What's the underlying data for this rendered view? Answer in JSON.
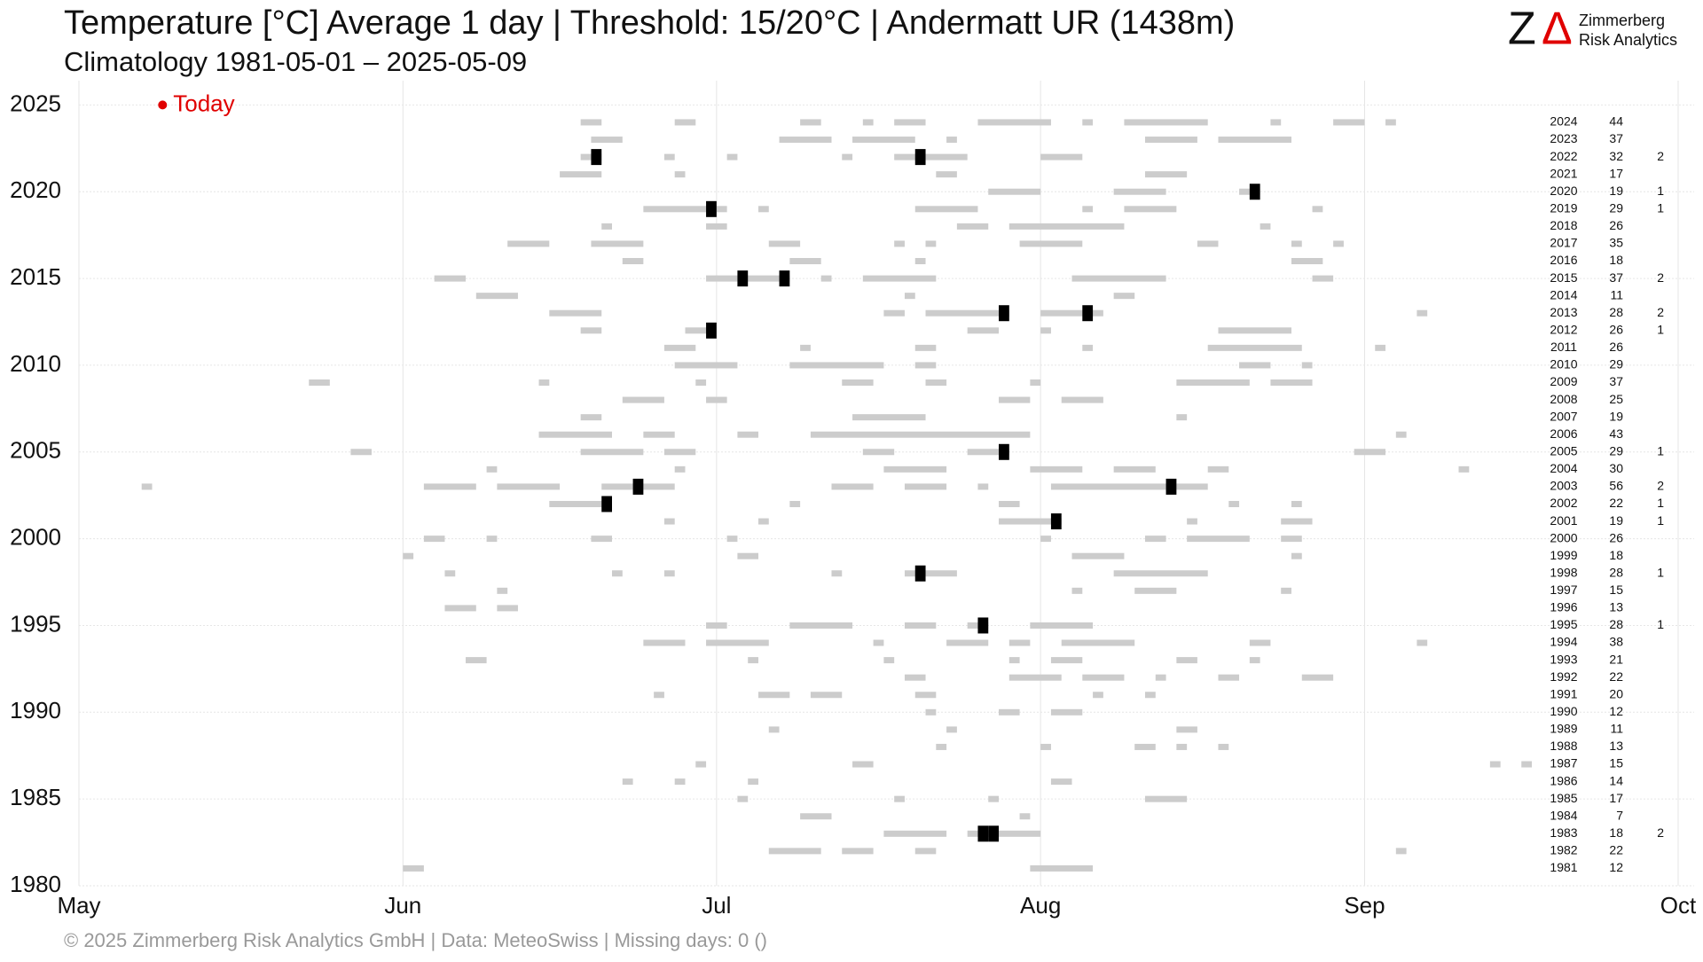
{
  "chart_data": {
    "type": "day-strips",
    "title": "Temperature [°C] Average 1 day | Threshold: 15/20°C | Andermatt  UR (1438m)",
    "subtitle": "Climatology 1981-05-01 – 2025-05-09",
    "footer": "©  2025 Zimmerberg Risk Analytics GmbH | Data: MeteoSwiss | Missing days: 0 ()",
    "logo": {
      "mark_z": "Z",
      "mark_delta": "Δ",
      "line1": "Zimmerberg",
      "line2": "Risk Analytics"
    },
    "today": {
      "label": "Today",
      "x": 8,
      "y": 2025,
      "color": "#e00000"
    },
    "span_color": "#cccccc",
    "hot_color": "#000000",
    "grid": true,
    "xlim": [
      0,
      153
    ],
    "xticks": [
      {
        "value": 0,
        "label": "May"
      },
      {
        "value": 31,
        "label": "Jun"
      },
      {
        "value": 61,
        "label": "Jul"
      },
      {
        "value": 92,
        "label": "Aug"
      },
      {
        "value": 123,
        "label": "Sep"
      },
      {
        "value": 153,
        "label": "Oct"
      }
    ],
    "ylim": [
      1980,
      2026.4
    ],
    "yticks": [
      1980,
      1985,
      1990,
      1995,
      2000,
      2005,
      2010,
      2015,
      2020,
      2025
    ],
    "rows": [
      {
        "year": 2024,
        "count15": 44,
        "spans": [
          [
            48,
            50
          ],
          [
            57,
            59
          ],
          [
            69,
            71
          ],
          [
            75,
            76
          ],
          [
            78,
            81
          ],
          [
            86,
            93
          ],
          [
            96,
            97
          ],
          [
            100,
            108
          ],
          [
            114,
            115
          ],
          [
            120,
            123
          ],
          [
            125,
            126
          ]
        ],
        "hot": []
      },
      {
        "year": 2023,
        "count15": 37,
        "spans": [
          [
            49,
            52
          ],
          [
            67,
            72
          ],
          [
            74,
            80
          ],
          [
            83,
            84
          ],
          [
            102,
            107
          ],
          [
            109,
            116
          ]
        ],
        "hot": []
      },
      {
        "year": 2022,
        "count15": 32,
        "count20": 2,
        "spans": [
          [
            48,
            50
          ],
          [
            56,
            57
          ],
          [
            62,
            63
          ],
          [
            73,
            74
          ],
          [
            78,
            85
          ],
          [
            92,
            96
          ]
        ],
        "hot": [
          49,
          80
        ]
      },
      {
        "year": 2021,
        "count15": 17,
        "spans": [
          [
            46,
            50
          ],
          [
            57,
            58
          ],
          [
            82,
            84
          ],
          [
            102,
            106
          ]
        ],
        "hot": []
      },
      {
        "year": 2020,
        "count15": 19,
        "count20": 1,
        "spans": [
          [
            87,
            92
          ],
          [
            99,
            104
          ],
          [
            111,
            113
          ]
        ],
        "hot": [
          112
        ]
      },
      {
        "year": 2019,
        "count15": 29,
        "count20": 1,
        "spans": [
          [
            54,
            62
          ],
          [
            65,
            66
          ],
          [
            80,
            86
          ],
          [
            96,
            97
          ],
          [
            100,
            105
          ],
          [
            118,
            119
          ]
        ],
        "hot": [
          60
        ]
      },
      {
        "year": 2018,
        "count15": 26,
        "spans": [
          [
            50,
            51
          ],
          [
            60,
            62
          ],
          [
            84,
            87
          ],
          [
            89,
            100
          ],
          [
            113,
            114
          ]
        ],
        "hot": []
      },
      {
        "year": 2017,
        "count15": 35,
        "spans": [
          [
            41,
            45
          ],
          [
            49,
            54
          ],
          [
            66,
            69
          ],
          [
            78,
            79
          ],
          [
            81,
            82
          ],
          [
            90,
            96
          ],
          [
            107,
            109
          ],
          [
            116,
            117
          ],
          [
            120,
            121
          ]
        ],
        "hot": []
      },
      {
        "year": 2016,
        "count15": 18,
        "spans": [
          [
            52,
            54
          ],
          [
            68,
            71
          ],
          [
            80,
            81
          ],
          [
            116,
            119
          ]
        ],
        "hot": []
      },
      {
        "year": 2015,
        "count15": 37,
        "count20": 2,
        "spans": [
          [
            34,
            37
          ],
          [
            60,
            68
          ],
          [
            71,
            72
          ],
          [
            75,
            82
          ],
          [
            95,
            104
          ],
          [
            118,
            120
          ]
        ],
        "hot": [
          63,
          67
        ]
      },
      {
        "year": 2014,
        "count15": 11,
        "spans": [
          [
            38,
            42
          ],
          [
            79,
            80
          ],
          [
            99,
            101
          ]
        ],
        "hot": []
      },
      {
        "year": 2013,
        "count15": 28,
        "count20": 2,
        "spans": [
          [
            45,
            50
          ],
          [
            77,
            79
          ],
          [
            81,
            89
          ],
          [
            92,
            98
          ],
          [
            128,
            129
          ]
        ],
        "hot": [
          88,
          96
        ]
      },
      {
        "year": 2012,
        "count15": 26,
        "count20": 1,
        "spans": [
          [
            48,
            50
          ],
          [
            58,
            61
          ],
          [
            85,
            88
          ],
          [
            92,
            93
          ],
          [
            109,
            116
          ]
        ],
        "hot": [
          60
        ]
      },
      {
        "year": 2011,
        "count15": 26,
        "spans": [
          [
            56,
            59
          ],
          [
            69,
            70
          ],
          [
            80,
            82
          ],
          [
            96,
            97
          ],
          [
            108,
            117
          ],
          [
            124,
            125
          ]
        ],
        "hot": []
      },
      {
        "year": 2010,
        "count15": 29,
        "spans": [
          [
            57,
            63
          ],
          [
            68,
            77
          ],
          [
            80,
            82
          ],
          [
            111,
            114
          ],
          [
            117,
            118
          ]
        ],
        "hot": []
      },
      {
        "year": 2009,
        "count15": 37,
        "spans": [
          [
            22,
            24
          ],
          [
            44,
            45
          ],
          [
            59,
            60
          ],
          [
            73,
            76
          ],
          [
            81,
            83
          ],
          [
            91,
            92
          ],
          [
            105,
            112
          ],
          [
            114,
            118
          ]
        ],
        "hot": []
      },
      {
        "year": 2008,
        "count15": 25,
        "spans": [
          [
            52,
            56
          ],
          [
            60,
            62
          ],
          [
            88,
            91
          ],
          [
            94,
            98
          ]
        ],
        "hot": []
      },
      {
        "year": 2007,
        "count15": 19,
        "spans": [
          [
            48,
            50
          ],
          [
            74,
            81
          ],
          [
            105,
            106
          ]
        ],
        "hot": []
      },
      {
        "year": 2006,
        "count15": 43,
        "spans": [
          [
            44,
            51
          ],
          [
            54,
            57
          ],
          [
            63,
            65
          ],
          [
            70,
            91
          ],
          [
            126,
            127
          ]
        ],
        "hot": []
      },
      {
        "year": 2005,
        "count15": 29,
        "count20": 1,
        "spans": [
          [
            26,
            28
          ],
          [
            48,
            54
          ],
          [
            56,
            59
          ],
          [
            75,
            78
          ],
          [
            85,
            89
          ],
          [
            122,
            125
          ]
        ],
        "hot": [
          88
        ]
      },
      {
        "year": 2004,
        "count15": 30,
        "spans": [
          [
            39,
            40
          ],
          [
            57,
            58
          ],
          [
            77,
            83
          ],
          [
            91,
            96
          ],
          [
            99,
            103
          ],
          [
            108,
            110
          ],
          [
            132,
            133
          ]
        ],
        "hot": []
      },
      {
        "year": 2003,
        "count15": 56,
        "count20": 2,
        "spans": [
          [
            6,
            7
          ],
          [
            33,
            38
          ],
          [
            40,
            46
          ],
          [
            50,
            57
          ],
          [
            72,
            76
          ],
          [
            79,
            83
          ],
          [
            86,
            87
          ],
          [
            93,
            108
          ]
        ],
        "hot": [
          53,
          104
        ]
      },
      {
        "year": 2002,
        "count15": 22,
        "count20": 1,
        "spans": [
          [
            45,
            51
          ],
          [
            68,
            69
          ],
          [
            88,
            90
          ],
          [
            110,
            111
          ],
          [
            116,
            117
          ]
        ],
        "hot": [
          50
        ]
      },
      {
        "year": 2001,
        "count15": 19,
        "count20": 1,
        "spans": [
          [
            56,
            57
          ],
          [
            65,
            66
          ],
          [
            88,
            94
          ],
          [
            106,
            107
          ],
          [
            115,
            118
          ]
        ],
        "hot": [
          93
        ]
      },
      {
        "year": 2000,
        "count15": 26,
        "spans": [
          [
            33,
            35
          ],
          [
            39,
            40
          ],
          [
            49,
            51
          ],
          [
            62,
            63
          ],
          [
            92,
            93
          ],
          [
            102,
            104
          ],
          [
            106,
            112
          ],
          [
            115,
            117
          ]
        ],
        "hot": []
      },
      {
        "year": 1999,
        "count15": 18,
        "spans": [
          [
            31,
            32
          ],
          [
            63,
            65
          ],
          [
            95,
            100
          ],
          [
            116,
            117
          ]
        ],
        "hot": []
      },
      {
        "year": 1998,
        "count15": 28,
        "count20": 1,
        "spans": [
          [
            35,
            36
          ],
          [
            51,
            52
          ],
          [
            56,
            57
          ],
          [
            72,
            73
          ],
          [
            79,
            84
          ],
          [
            99,
            108
          ]
        ],
        "hot": [
          80
        ]
      },
      {
        "year": 1997,
        "count15": 15,
        "spans": [
          [
            40,
            41
          ],
          [
            95,
            96
          ],
          [
            101,
            105
          ],
          [
            115,
            116
          ]
        ],
        "hot": []
      },
      {
        "year": 1996,
        "count15": 13,
        "spans": [
          [
            35,
            38
          ],
          [
            40,
            42
          ]
        ],
        "hot": []
      },
      {
        "year": 1995,
        "count15": 28,
        "count20": 1,
        "spans": [
          [
            60,
            62
          ],
          [
            68,
            74
          ],
          [
            79,
            82
          ],
          [
            85,
            87
          ],
          [
            91,
            97
          ]
        ],
        "hot": [
          86
        ]
      },
      {
        "year": 1994,
        "count15": 38,
        "spans": [
          [
            54,
            58
          ],
          [
            60,
            66
          ],
          [
            76,
            77
          ],
          [
            83,
            87
          ],
          [
            89,
            91
          ],
          [
            94,
            101
          ],
          [
            112,
            114
          ],
          [
            128,
            129
          ]
        ],
        "hot": []
      },
      {
        "year": 1993,
        "count15": 21,
        "spans": [
          [
            37,
            39
          ],
          [
            64,
            65
          ],
          [
            77,
            78
          ],
          [
            89,
            90
          ],
          [
            93,
            96
          ],
          [
            105,
            107
          ],
          [
            112,
            113
          ]
        ],
        "hot": []
      },
      {
        "year": 1992,
        "count15": 22,
        "spans": [
          [
            79,
            81
          ],
          [
            89,
            94
          ],
          [
            96,
            100
          ],
          [
            103,
            104
          ],
          [
            109,
            111
          ],
          [
            117,
            120
          ]
        ],
        "hot": []
      },
      {
        "year": 1991,
        "count15": 20,
        "spans": [
          [
            55,
            56
          ],
          [
            65,
            68
          ],
          [
            70,
            73
          ],
          [
            80,
            82
          ],
          [
            97,
            98
          ],
          [
            102,
            103
          ]
        ],
        "hot": []
      },
      {
        "year": 1990,
        "count15": 12,
        "spans": [
          [
            81,
            82
          ],
          [
            88,
            90
          ],
          [
            93,
            96
          ]
        ],
        "hot": []
      },
      {
        "year": 1989,
        "count15": 11,
        "spans": [
          [
            66,
            67
          ],
          [
            83,
            84
          ],
          [
            105,
            107
          ]
        ],
        "hot": []
      },
      {
        "year": 1988,
        "count15": 13,
        "spans": [
          [
            82,
            83
          ],
          [
            92,
            93
          ],
          [
            101,
            103
          ],
          [
            105,
            106
          ],
          [
            109,
            110
          ]
        ],
        "hot": []
      },
      {
        "year": 1987,
        "count15": 15,
        "spans": [
          [
            59,
            60
          ],
          [
            74,
            76
          ],
          [
            135,
            136
          ],
          [
            138,
            139
          ]
        ],
        "hot": []
      },
      {
        "year": 1986,
        "count15": 14,
        "spans": [
          [
            52,
            53
          ],
          [
            57,
            58
          ],
          [
            64,
            65
          ],
          [
            93,
            95
          ]
        ],
        "hot": []
      },
      {
        "year": 1985,
        "count15": 17,
        "spans": [
          [
            63,
            64
          ],
          [
            78,
            79
          ],
          [
            87,
            88
          ],
          [
            102,
            106
          ]
        ],
        "hot": []
      },
      {
        "year": 1984,
        "count15": 7,
        "spans": [
          [
            69,
            72
          ],
          [
            90,
            91
          ]
        ],
        "hot": []
      },
      {
        "year": 1983,
        "count15": 18,
        "count20": 2,
        "spans": [
          [
            77,
            83
          ],
          [
            85,
            92
          ]
        ],
        "hot": [
          86,
          87
        ]
      },
      {
        "year": 1982,
        "count15": 22,
        "spans": [
          [
            66,
            71
          ],
          [
            73,
            76
          ],
          [
            80,
            82
          ],
          [
            126,
            127
          ]
        ],
        "hot": []
      },
      {
        "year": 1981,
        "count15": 12,
        "spans": [
          [
            31,
            33
          ],
          [
            91,
            97
          ]
        ],
        "hot": []
      }
    ]
  }
}
